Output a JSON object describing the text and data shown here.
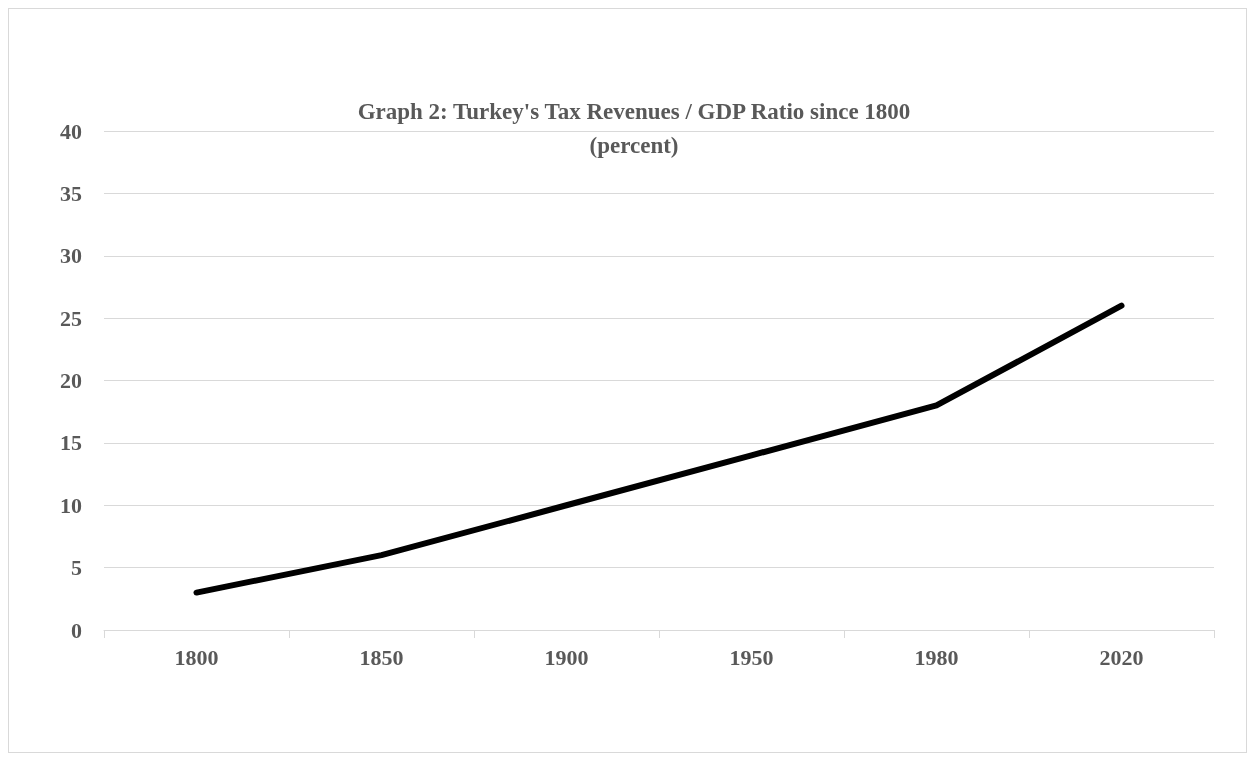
{
  "chart_data": {
    "type": "line",
    "title": "Graph 2: Turkey's Tax Revenues / GDP Ratio since 1800",
    "subtitle": "(percent)",
    "categories": [
      "1800",
      "1850",
      "1900",
      "1950",
      "1980",
      "2020"
    ],
    "series": [
      {
        "color": "#000000",
        "values": [
          3,
          6,
          10,
          14,
          18,
          26
        ]
      }
    ],
    "ylim": [
      0,
      40
    ],
    "yticks": [
      0,
      5,
      10,
      15,
      20,
      25,
      30,
      35,
      40
    ],
    "grid": "y",
    "marker": "none",
    "line_style": "solid"
  }
}
